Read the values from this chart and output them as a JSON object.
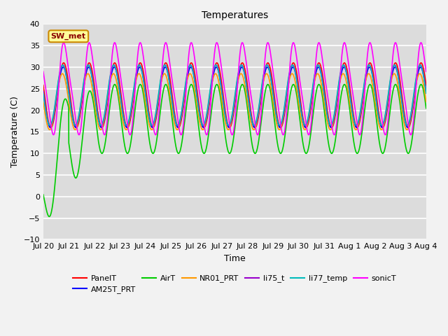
{
  "title": "Temperatures",
  "xlabel": "Time",
  "ylabel": "Temperature (C)",
  "ylim": [
    -10,
    40
  ],
  "duration_days": 15,
  "n_points": 3600,
  "series": {
    "PanelT": {
      "color": "#ff0000",
      "lw": 1.2,
      "base": 23.5,
      "amp": 7.5,
      "phase": 0.0,
      "noise": 0.0
    },
    "AM25T_PRT": {
      "color": "#0000ff",
      "lw": 1.2,
      "base": 23.0,
      "amp": 7.0,
      "phase": 0.02,
      "noise": 0.0
    },
    "AirT": {
      "color": "#00cc00",
      "lw": 1.2,
      "base": 20.0,
      "amp": 10.0,
      "phase": 0.0,
      "noise": 0.0
    },
    "NR01_PRT": {
      "color": "#ff9900",
      "lw": 1.2,
      "base": 22.0,
      "amp": 6.5,
      "phase": 0.05,
      "noise": 0.0
    },
    "li75_t": {
      "color": "#9900cc",
      "lw": 1.2,
      "base": 23.5,
      "amp": 7.0,
      "phase": 0.03,
      "noise": 0.0
    },
    "li77_temp": {
      "color": "#00bbbb",
      "lw": 1.2,
      "base": 23.5,
      "amp": 7.0,
      "phase": 0.04,
      "noise": 0.0
    },
    "sonicT": {
      "color": "#ff00ff",
      "lw": 1.2,
      "base": 25.0,
      "amp": 10.0,
      "phase": -0.05,
      "noise": 0.0
    }
  },
  "legend_order": [
    "PanelT",
    "AM25T_PRT",
    "AirT",
    "NR01_PRT",
    "li75_t",
    "li77_temp",
    "sonicT"
  ],
  "xtick_labels": [
    "Jul 20",
    "Jul 21",
    "Jul 22",
    "Jul 23",
    "Jul 24",
    "Jul 25",
    "Jul 26",
    "Jul 27",
    "Jul 28",
    "Jul 29",
    "Jul 30",
    "Jul 31",
    "Aug 1",
    "Aug 2",
    "Aug 3",
    "Aug 4"
  ],
  "annotation_text": "SW_met",
  "bg_color": "#dcdcdc",
  "fig_bg_color": "#f2f2f2",
  "title_fontsize": 10,
  "label_fontsize": 9,
  "tick_fontsize": 8,
  "legend_fontsize": 8
}
